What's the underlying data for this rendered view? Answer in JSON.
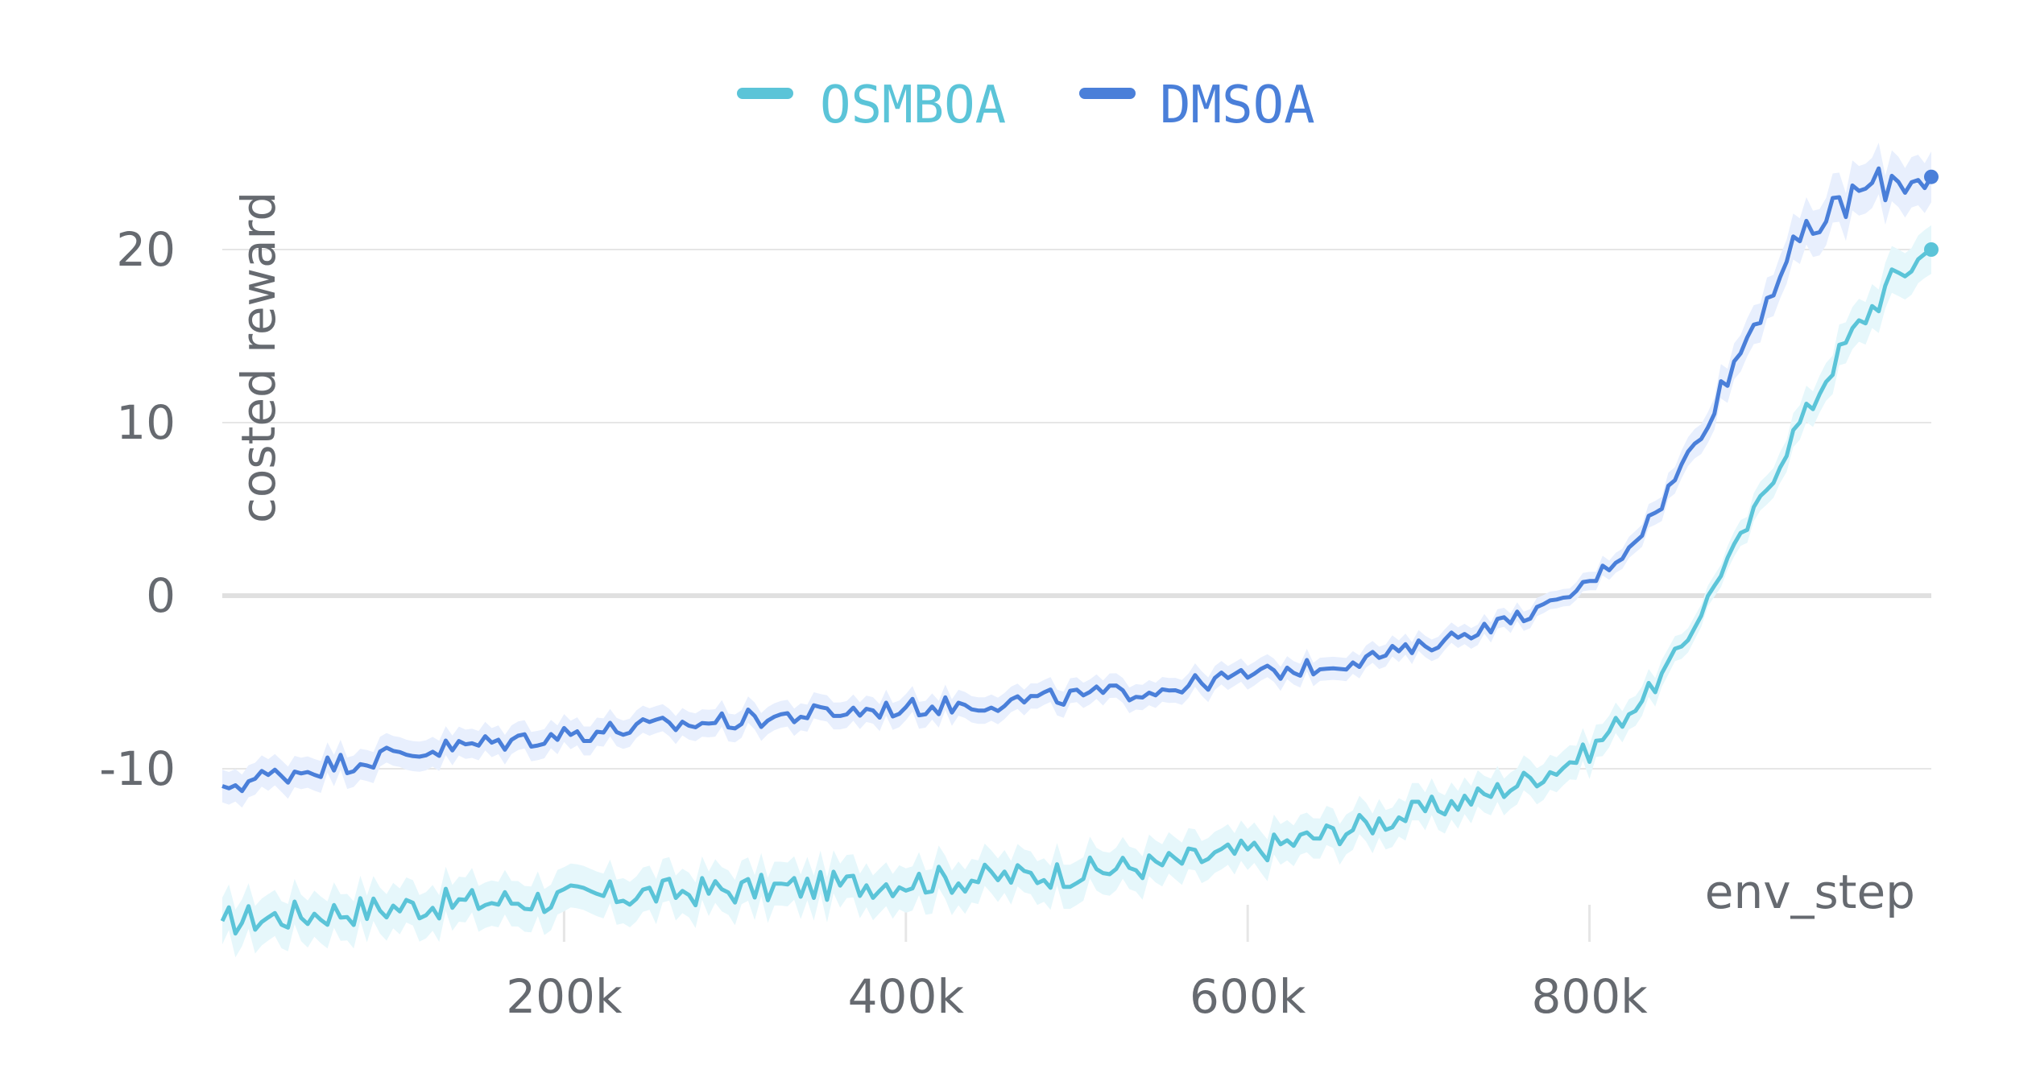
{
  "chart_data": {
    "type": "line",
    "title": "",
    "xlabel": "env_step",
    "ylabel": "costed reward",
    "xlim": [
      0,
      1000000
    ],
    "ylim": [
      -20,
      25
    ],
    "x_ticks": [
      200000,
      400000,
      600000,
      800000
    ],
    "x_tick_labels": [
      "200k",
      "400k",
      "600k",
      "800k"
    ],
    "y_ticks": [
      -10,
      0,
      10,
      20
    ],
    "y_tick_labels": [
      "-10",
      "0",
      "10",
      "20"
    ],
    "grid": true,
    "legend_position": "top-center",
    "colors": {
      "OSMBOA": "#5bc4d8",
      "DMSOA": "#4a7fd9",
      "OSMBOA_band": "#e6f7fb",
      "DMSOA_band": "#e8effd",
      "grid": "#e6e6e6",
      "zero_line": "#e0e0e0"
    },
    "series": [
      {
        "name": "OSMBOA",
        "key": "OSMBOA",
        "band_width": 0.6,
        "x": [
          0,
          50000,
          100000,
          150000,
          200000,
          250000,
          300000,
          350000,
          400000,
          450000,
          500000,
          550000,
          600000,
          650000,
          700000,
          740000,
          780000,
          800000,
          820000,
          840000,
          860000,
          870000,
          880000,
          890000,
          900000,
          910000,
          920000,
          930000,
          940000,
          960000,
          980000,
          1000000
        ],
        "y": [
          -18.8,
          -18.4,
          -18.0,
          -17.7,
          -17.5,
          -17.2,
          -17.0,
          -16.8,
          -16.5,
          -16.3,
          -16.0,
          -15.5,
          -14.8,
          -13.7,
          -12.5,
          -11.5,
          -10.0,
          -9.0,
          -7.0,
          -5.0,
          -2.0,
          0.0,
          2.0,
          3.5,
          5.5,
          7.5,
          9.5,
          11.0,
          13.0,
          16.0,
          18.5,
          20.0
        ]
      },
      {
        "name": "DMSOA",
        "key": "DMSOA",
        "band_width": 0.5,
        "x": [
          0,
          50000,
          100000,
          150000,
          200000,
          250000,
          300000,
          350000,
          400000,
          450000,
          500000,
          550000,
          600000,
          650000,
          700000,
          720000,
          750000,
          780000,
          800000,
          820000,
          840000,
          860000,
          880000,
          900000,
          910000,
          920000,
          930000,
          940000,
          960000,
          980000,
          1000000
        ],
        "y": [
          -11.0,
          -10.0,
          -9.2,
          -8.6,
          -8.0,
          -7.6,
          -7.2,
          -6.8,
          -6.5,
          -6.2,
          -5.8,
          -5.4,
          -4.6,
          -4.0,
          -3.0,
          -2.4,
          -1.5,
          -0.5,
          0.8,
          2.5,
          5.0,
          8.5,
          12.5,
          16.5,
          18.5,
          20.0,
          21.0,
          22.0,
          23.5,
          24.0,
          24.2
        ]
      }
    ]
  }
}
